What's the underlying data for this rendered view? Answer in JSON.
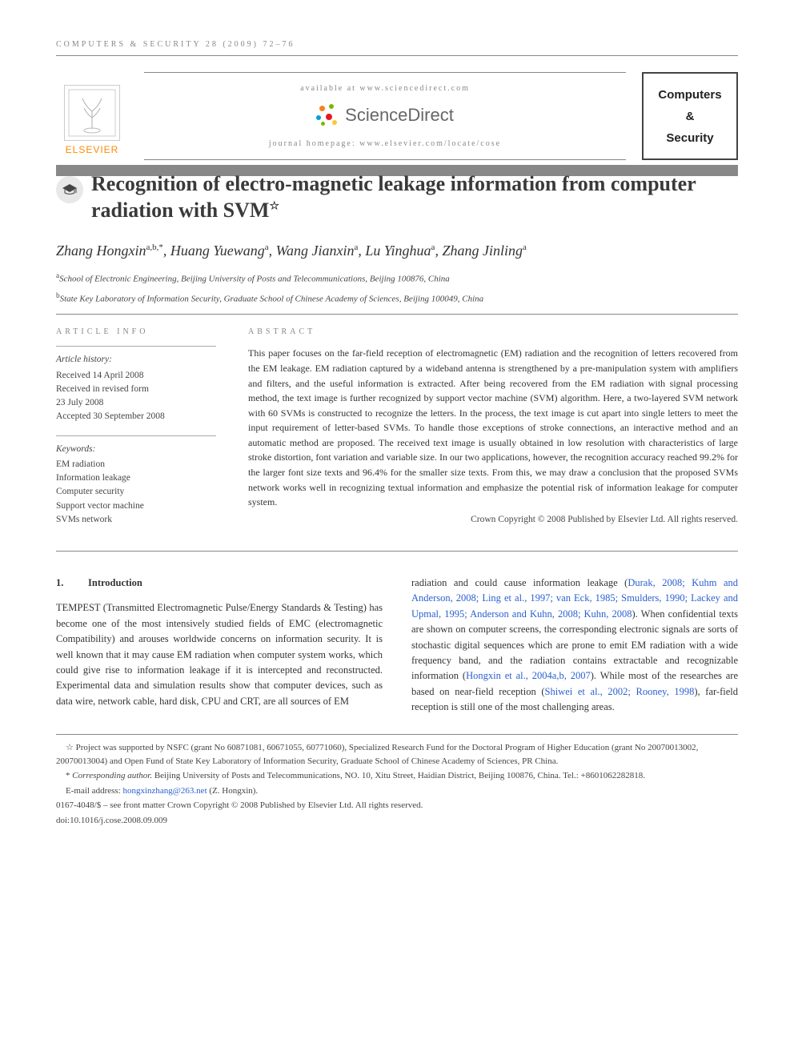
{
  "running_head": "COMPUTERS & SECURITY 28 (2009) 72–76",
  "masthead": {
    "available_at": "available at www.sciencedirect.com",
    "sd_brand": "ScienceDirect",
    "sd_dot_colors": [
      "#f58220",
      "#7ab800",
      "#009fda",
      "#e31b23",
      "#ffc72c"
    ],
    "homepage": "journal homepage: www.elsevier.com/locate/cose",
    "elsevier_word": "ELSEVIER",
    "journal_box_lines": [
      "Computers",
      "&",
      "Security"
    ]
  },
  "title_bar_color": "#8a8a86",
  "cap_icon_glyph": "🎓",
  "article_title": "Recognition of electro-magnetic leakage information from computer radiation with SVM",
  "title_star": "☆",
  "authors_html": "Zhang Hongxin<sup>a,b,*</sup>, Huang Yuewang<sup>a</sup>, Wang Jianxin<sup>a</sup>, Lu Yinghua<sup>a</sup>, Zhang Jinling<sup>a</sup>",
  "affiliations": [
    {
      "sup": "a",
      "text": "School of Electronic Engineering, Beijing University of Posts and Telecommunications, Beijing 100876, China"
    },
    {
      "sup": "b",
      "text": "State Key Laboratory of Information Security, Graduate School of Chinese Academy of Sciences, Beijing 100049, China"
    }
  ],
  "info": {
    "head": "ARTICLE INFO",
    "history_label": "Article history:",
    "history_lines": [
      "Received 14 April 2008",
      "Received in revised form",
      "23 July 2008",
      "Accepted 30 September 2008"
    ],
    "keywords_label": "Keywords:",
    "keywords": [
      "EM radiation",
      "Information leakage",
      "Computer security",
      "Support vector machine",
      "SVMs network"
    ]
  },
  "abstract": {
    "head": "ABSTRACT",
    "text": "This paper focuses on the far-field reception of electromagnetic (EM) radiation and the recognition of letters recovered from the EM leakage. EM radiation captured by a wideband antenna is strengthened by a pre-manipulation system with amplifiers and filters, and the useful information is extracted. After being recovered from the EM radiation with signal processing method, the text image is further recognized by support vector machine (SVM) algorithm. Here, a two-layered SVM network with 60 SVMs is constructed to recognize the letters. In the process, the text image is cut apart into single letters to meet the input requirement of letter-based SVMs. To handle those exceptions of stroke connections, an interactive method and an automatic method are proposed. The received text image is usually obtained in low resolution with characteristics of large stroke distortion, font variation and variable size. In our two applications, however, the recognition accuracy reached 99.2% for the larger font size texts and 96.4% for the smaller size texts. From this, we may draw a conclusion that the proposed SVMs network works well in recognizing textual information and emphasize the potential risk of information leakage for computer system.",
    "copyright": "Crown Copyright © 2008 Published by Elsevier Ltd. All rights reserved."
  },
  "section1": {
    "num": "1.",
    "title": "Introduction",
    "col_left": "TEMPEST (Transmitted Electromagnetic Pulse/Energy Standards & Testing) has become one of the most intensively studied fields of EMC (electromagnetic Compatibility) and arouses worldwide concerns on information security. It is well known that it may cause EM radiation when computer system works, which could give rise to information leakage if it is intercepted and reconstructed. Experimental data and simulation results show that computer devices, such as data wire, network cable, hard disk, CPU and CRT, are all sources of EM",
    "col_right_pre": "radiation and could cause information leakage (",
    "cite1": "Durak, 2008; Kuhm and Anderson, 2008; Ling et al., 1997; van Eck, 1985; Smulders, 1990; Lackey and Upmal, 1995; Anderson and Kuhn, 2008; Kuhn, 2008",
    "col_right_mid": "). When confidential texts are shown on computer screens, the corresponding electronic signals are sorts of stochastic digital sequences which are prone to emit EM radiation with a wide frequency band, and the radiation contains extractable and recognizable information (",
    "cite2": "Hongxin et al., 2004a,b, 2007",
    "col_right_mid2": "). While most of the researches are based on near-field reception (",
    "cite3": "Shiwei et al., 2002; Rooney, 1998",
    "col_right_post": "), far-field reception is still one of the most challenging areas."
  },
  "footnotes": {
    "funding_mark": "☆",
    "funding": "Project was supported by NSFC (grant No  60871081, 60671055, 60771060), Specialized Research Fund for the Doctoral Program of Higher Education (grant No 20070013002, 20070013004) and Open Fund of State Key Laboratory of Information Security, Graduate School of Chinese Academy of Sciences, PR China.",
    "corr_mark": "*",
    "corr_label": "Corresponding author.",
    "corr_text": " Beijing University of Posts and Telecommunications, NO. 10, Xitu Street, Haidian District, Beijing 100876, China. Tel.: +8601062282818.",
    "email_label": "E-mail address: ",
    "email": "hongxinzhang@263.net",
    "email_suffix": " (Z. Hongxin).",
    "issn_line": "0167-4048/$ – see front matter Crown Copyright © 2008 Published by Elsevier Ltd. All rights reserved.",
    "doi_line": "doi:10.1016/j.cose.2008.09.009"
  },
  "colors": {
    "text": "#333333",
    "muted": "#888888",
    "rule": "#888888",
    "link": "#2a5fd0",
    "elsevier_orange": "#ff8a00"
  },
  "typography": {
    "body_pt": 12.5,
    "title_pt": 26,
    "authors_pt": 18,
    "small_pt": 11,
    "letterspacing_head": 4
  }
}
